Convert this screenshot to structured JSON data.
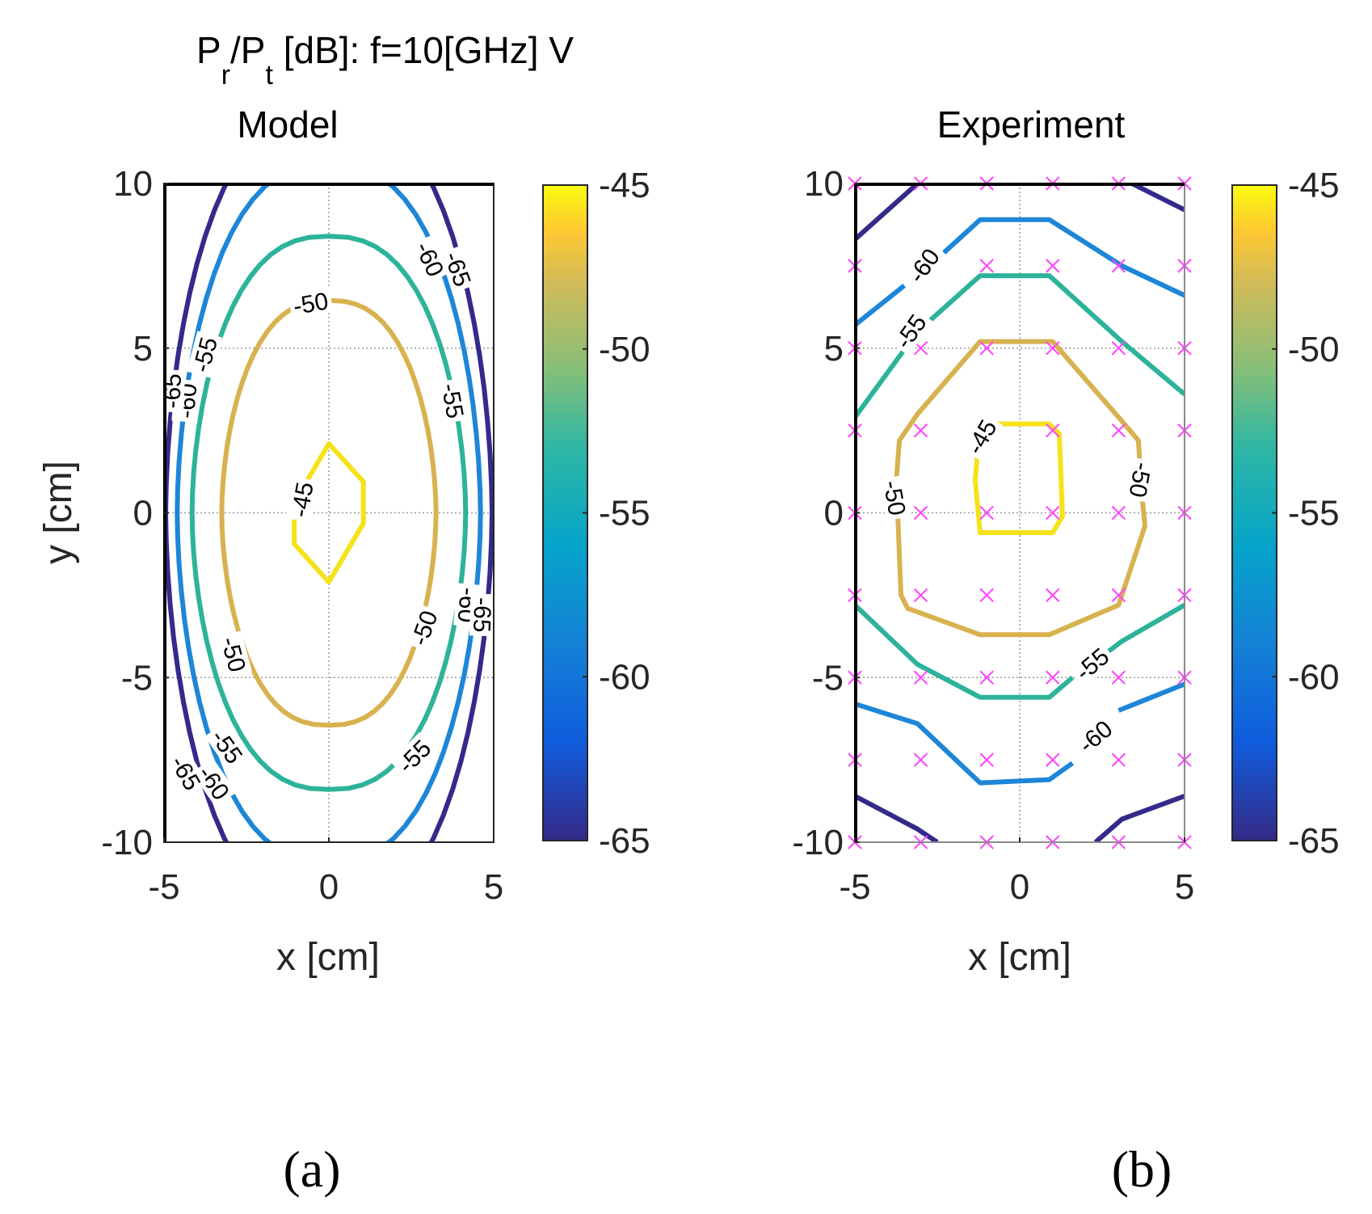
{
  "figure": {
    "suptitle_main": "P",
    "suptitle_sub_r": "r",
    "suptitle_slash": "/P",
    "suptitle_sub_t": "t",
    "suptitle_rest": " [dB]:  f=10[GHz] V",
    "panel_a_label": "(a)",
    "panel_b_label": "(b)"
  },
  "chart_data": [
    {
      "type": "contour",
      "title": "Model",
      "xlabel": "x [cm]",
      "ylabel": "y [cm]",
      "xlim": [
        -5,
        5
      ],
      "ylim": [
        -10,
        10
      ],
      "xticks": [
        "-5",
        "0",
        "5"
      ],
      "yticks": [
        "10",
        "5",
        "0",
        "-5",
        "-10"
      ],
      "grid": true,
      "colorbar": {
        "range": [
          -65,
          -45
        ],
        "ticks": [
          "-45",
          "-50",
          "-55",
          "-60",
          "-65"
        ],
        "colormap": "parula"
      },
      "levels": [
        {
          "level": -45,
          "color": "#f5e21a",
          "label": "-45"
        },
        {
          "level": -50,
          "color": "#d8b24f",
          "label": "-50"
        },
        {
          "level": -55,
          "color": "#2db39a",
          "label": "-55"
        },
        {
          "level": -60,
          "color": "#1d86d8",
          "label": "-60"
        },
        {
          "level": -65,
          "color": "#332a8a",
          "label": "-65"
        }
      ],
      "contours": [
        {
          "level": -45,
          "cx": 0,
          "cy": 0,
          "rx": 1.05,
          "ry": 2.1,
          "shape": "diamond"
        },
        {
          "level": -50,
          "cx": 0,
          "cy": 0,
          "rx": 3.25,
          "ry": 6.45,
          "shape": "ellipse"
        },
        {
          "level": -55,
          "cx": 0,
          "cy": 0,
          "rx": 4.15,
          "ry": 8.4,
          "shape": "ellipse"
        },
        {
          "level": -60,
          "cx": 0,
          "cy": 0,
          "rx": 4.6,
          "ry": 10.6,
          "shape": "ellipse"
        },
        {
          "level": -65,
          "cx": 0,
          "cy": 0,
          "rx": 4.95,
          "ry": 12.3,
          "shape": "ellipse"
        }
      ]
    },
    {
      "type": "contour",
      "title": "Experiment",
      "xlabel": "x [cm]",
      "ylabel": "",
      "xlim": [
        -5,
        5
      ],
      "ylim": [
        -10,
        10
      ],
      "xticks": [
        "-5",
        "0",
        "5"
      ],
      "yticks": [
        "10",
        "5",
        "0",
        "-5",
        "-10"
      ],
      "grid": true,
      "colorbar": {
        "range": [
          -65,
          -45
        ],
        "ticks": [
          "-45",
          "-50",
          "-55",
          "-60",
          "-65"
        ],
        "colormap": "parula"
      },
      "measurement_grid": {
        "x": [
          -5,
          -3,
          -1,
          1,
          3,
          5
        ],
        "y": [
          10,
          7.5,
          5,
          2.5,
          0,
          -2.5,
          -5,
          -7.5,
          -10
        ],
        "marker": "x",
        "color": "#ff44ff"
      },
      "contours": [
        {
          "level": -45,
          "color": "#f5e21a",
          "points": [
            [
              -1.3,
              1.6
            ],
            [
              -1.2,
              2.7
            ],
            [
              0.9,
              2.7
            ],
            [
              1.2,
              2.4
            ],
            [
              1.3,
              -0.1
            ],
            [
              1.0,
              -0.6
            ],
            [
              -1.2,
              -0.6
            ],
            [
              -1.35,
              1.0
            ]
          ]
        },
        {
          "level": -50,
          "color": "#d8b24f",
          "points": [
            [
              -3.7,
              0.0
            ],
            [
              -3.6,
              -2.5
            ],
            [
              -3.4,
              -2.9
            ],
            [
              -1.2,
              -3.7
            ],
            [
              0.9,
              -3.7
            ],
            [
              3.0,
              -2.8
            ],
            [
              3.8,
              -0.4
            ],
            [
              3.7,
              0.6
            ],
            [
              3.6,
              2.2
            ],
            [
              3.0,
              2.9
            ],
            [
              1.0,
              5.2
            ],
            [
              -1.2,
              5.2
            ],
            [
              -3.1,
              3.0
            ],
            [
              -3.65,
              2.2
            ],
            [
              -3.75,
              0.9
            ],
            [
              -3.75,
              0.5
            ]
          ]
        },
        {
          "level": -55,
          "color": "#2db39a",
          "points": [
            [
              -5,
              -2.8
            ],
            [
              -3.1,
              -4.6
            ],
            [
              -1.2,
              -5.6
            ],
            [
              0.9,
              -5.6
            ],
            [
              1.6,
              -5.0
            ]
          ]
        },
        {
          "level": -55,
          "color": "#2db39a",
          "points": [
            [
              2.7,
              -4.2
            ],
            [
              3.1,
              -3.9
            ],
            [
              5,
              -2.8
            ]
          ]
        },
        {
          "level": -55,
          "color": "#2db39a",
          "points": [
            [
              -5,
              2.9
            ],
            [
              -3.1,
              5.5
            ],
            [
              -1.2,
              7.2
            ],
            [
              0.9,
              7.2
            ],
            [
              3.1,
              5.2
            ],
            [
              5,
              3.6
            ]
          ]
        },
        {
          "level": -60,
          "color": "#1d86d8",
          "points": [
            [
              -5,
              -5.8
            ],
            [
              -3.1,
              -6.4
            ],
            [
              -1.2,
              -8.2
            ],
            [
              0.9,
              -8.1
            ],
            [
              1.6,
              -7.6
            ]
          ]
        },
        {
          "level": -60,
          "color": "#1d86d8",
          "points": [
            [
              3.0,
              -6.0
            ],
            [
              5,
              -5.2
            ]
          ]
        },
        {
          "level": -60,
          "color": "#1d86d8",
          "points": [
            [
              -5,
              5.7
            ],
            [
              -3.5,
              6.9
            ]
          ]
        },
        {
          "level": -60,
          "color": "#1d86d8",
          "points": [
            [
              -2.3,
              7.9
            ],
            [
              -1.2,
              8.9
            ],
            [
              0.9,
              8.9
            ],
            [
              3.1,
              7.5
            ],
            [
              5,
              6.6
            ]
          ]
        },
        {
          "level": -65,
          "color": "#332a8a",
          "points": [
            [
              -5,
              -8.6
            ],
            [
              -3.1,
              -9.6
            ],
            [
              -2.5,
              -10
            ]
          ]
        },
        {
          "level": -65,
          "color": "#332a8a",
          "points": [
            [
              2.3,
              -10
            ],
            [
              3.1,
              -9.3
            ],
            [
              5,
              -8.6
            ]
          ]
        },
        {
          "level": -65,
          "color": "#332a8a",
          "points": [
            [
              -5,
              8.3
            ],
            [
              -3.1,
              10
            ]
          ]
        },
        {
          "level": -65,
          "color": "#332a8a",
          "points": [
            [
              3.4,
              10
            ],
            [
              5,
              9.2
            ]
          ]
        }
      ],
      "contour_labels": [
        {
          "text": "-45",
          "x": -1.15,
          "y": 2.3,
          "rot": -60
        },
        {
          "text": "-50",
          "x": -3.8,
          "y": 0.45,
          "rot": 80
        },
        {
          "text": "-50",
          "x": 3.65,
          "y": 1.0,
          "rot": 100
        },
        {
          "text": "-55",
          "x": -3.3,
          "y": 5.5,
          "rot": -55
        },
        {
          "text": "-55",
          "x": 2.2,
          "y": -4.6,
          "rot": -40
        },
        {
          "text": "-60",
          "x": -2.9,
          "y": 7.5,
          "rot": -55
        },
        {
          "text": "-60",
          "x": 2.3,
          "y": -6.8,
          "rot": -40
        }
      ]
    }
  ],
  "model_contour_labels": [
    {
      "text": "-45",
      "x": -0.8,
      "y": 0.4,
      "rot": -80
    },
    {
      "text": "-50",
      "x": -0.55,
      "y": 6.35,
      "rot": -10
    },
    {
      "text": "-50",
      "x": 2.9,
      "y": -3.5,
      "rot": -70
    },
    {
      "text": "-50",
      "x": -2.9,
      "y": -4.3,
      "rot": 75
    },
    {
      "text": "-55",
      "x": -3.75,
      "y": 4.8,
      "rot": -75
    },
    {
      "text": "-55",
      "x": 3.75,
      "y": 3.4,
      "rot": 80
    },
    {
      "text": "-55",
      "x": 2.6,
      "y": -7.4,
      "rot": -45
    },
    {
      "text": "-55",
      "x": -3.1,
      "y": -7.1,
      "rot": 55
    },
    {
      "text": "-60",
      "x": 3.05,
      "y": 7.7,
      "rot": 65
    },
    {
      "text": "-60",
      "x": -4.3,
      "y": 3.4,
      "rot": -85
    },
    {
      "text": "-60",
      "x": 4.2,
      "y": -2.8,
      "rot": 95
    },
    {
      "text": "-60",
      "x": -3.5,
      "y": -8.2,
      "rot": 55
    },
    {
      "text": "-65",
      "x": 3.9,
      "y": 7.4,
      "rot": 70
    },
    {
      "text": "-65",
      "x": -4.75,
      "y": 3.7,
      "rot": -88
    },
    {
      "text": "-65",
      "x": 4.65,
      "y": -3.1,
      "rot": 92
    },
    {
      "text": "-65",
      "x": -4.35,
      "y": -7.9,
      "rot": 60
    }
  ]
}
